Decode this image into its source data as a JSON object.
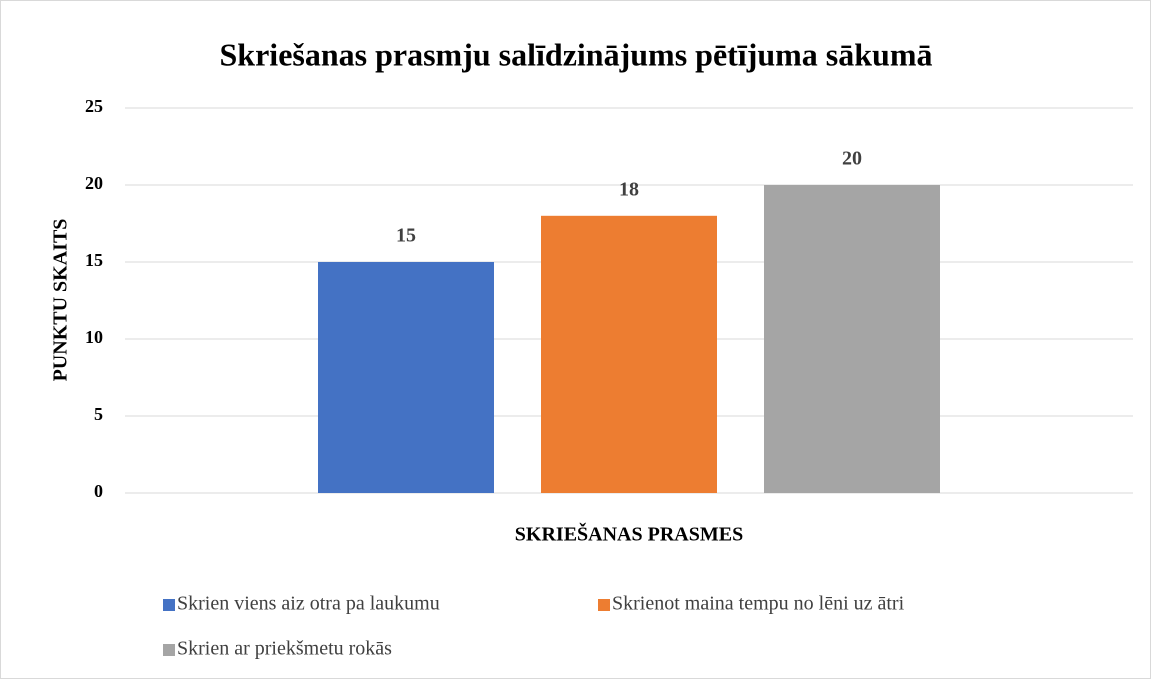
{
  "chart_data": {
    "type": "bar",
    "title": "Skriešanas prasmju salīdzinājums pētījuma sākumā",
    "y_label": "PUNKTU SKAITS",
    "x_label": "SKRIEŠANAS PRASMES",
    "categories": [
      null
    ],
    "series": [
      {
        "name": "Skrien viens aiz otra pa laukumu",
        "color": "#4472c4",
        "values": [
          15
        ]
      },
      {
        "name": "Skrienot maina tempu no lēni uz ātri",
        "color": "#ed7d31",
        "values": [
          18
        ]
      },
      {
        "name": "Skrien ar priekšmetu rokās",
        "color": "#a5a5a5",
        "values": [
          20
        ]
      }
    ],
    "ylim": [
      0,
      25
    ],
    "yticks": [
      0,
      5,
      10,
      15,
      20,
      25
    ],
    "grid": true
  }
}
